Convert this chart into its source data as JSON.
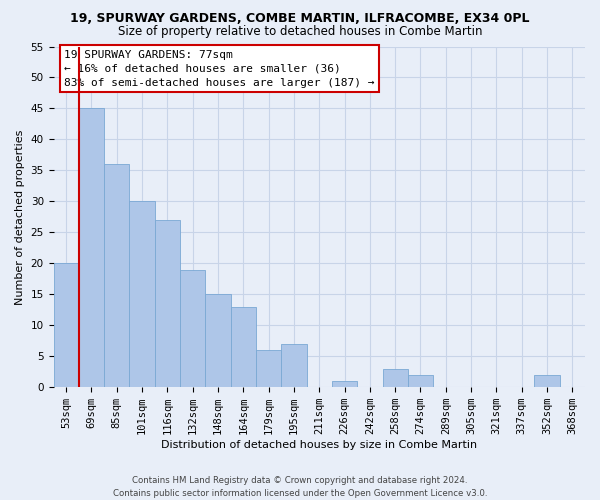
{
  "title": "19, SPURWAY GARDENS, COMBE MARTIN, ILFRACOMBE, EX34 0PL",
  "subtitle": "Size of property relative to detached houses in Combe Martin",
  "xlabel": "Distribution of detached houses by size in Combe Martin",
  "ylabel": "Number of detached properties",
  "footer_lines": [
    "Contains HM Land Registry data © Crown copyright and database right 2024.",
    "Contains public sector information licensed under the Open Government Licence v3.0."
  ],
  "bin_labels": [
    "53sqm",
    "69sqm",
    "85sqm",
    "101sqm",
    "116sqm",
    "132sqm",
    "148sqm",
    "164sqm",
    "179sqm",
    "195sqm",
    "211sqm",
    "226sqm",
    "242sqm",
    "258sqm",
    "274sqm",
    "289sqm",
    "305sqm",
    "321sqm",
    "337sqm",
    "352sqm",
    "368sqm"
  ],
  "bar_values": [
    20,
    45,
    36,
    30,
    27,
    19,
    15,
    13,
    6,
    7,
    0,
    1,
    0,
    3,
    2,
    0,
    0,
    0,
    0,
    2,
    0
  ],
  "bar_color": "#aec6e8",
  "bar_edge_color": "#7aa8d4",
  "vline_x": 0.5,
  "vline_color": "#cc0000",
  "ylim": [
    0,
    55
  ],
  "yticks": [
    0,
    5,
    10,
    15,
    20,
    25,
    30,
    35,
    40,
    45,
    50,
    55
  ],
  "annotation_title": "19 SPURWAY GARDENS: 77sqm",
  "annotation_line1": "← 16% of detached houses are smaller (36)",
  "annotation_line2": "83% of semi-detached houses are larger (187) →",
  "annotation_box_facecolor": "#ffffff",
  "annotation_box_edgecolor": "#cc0000",
  "grid_color": "#c8d4e8",
  "background_color": "#e8eef8",
  "title_fontsize": 9.0,
  "subtitle_fontsize": 8.5,
  "axis_label_fontsize": 8.0,
  "tick_fontsize": 7.5,
  "annotation_fontsize": 8.0,
  "footer_fontsize": 6.2
}
